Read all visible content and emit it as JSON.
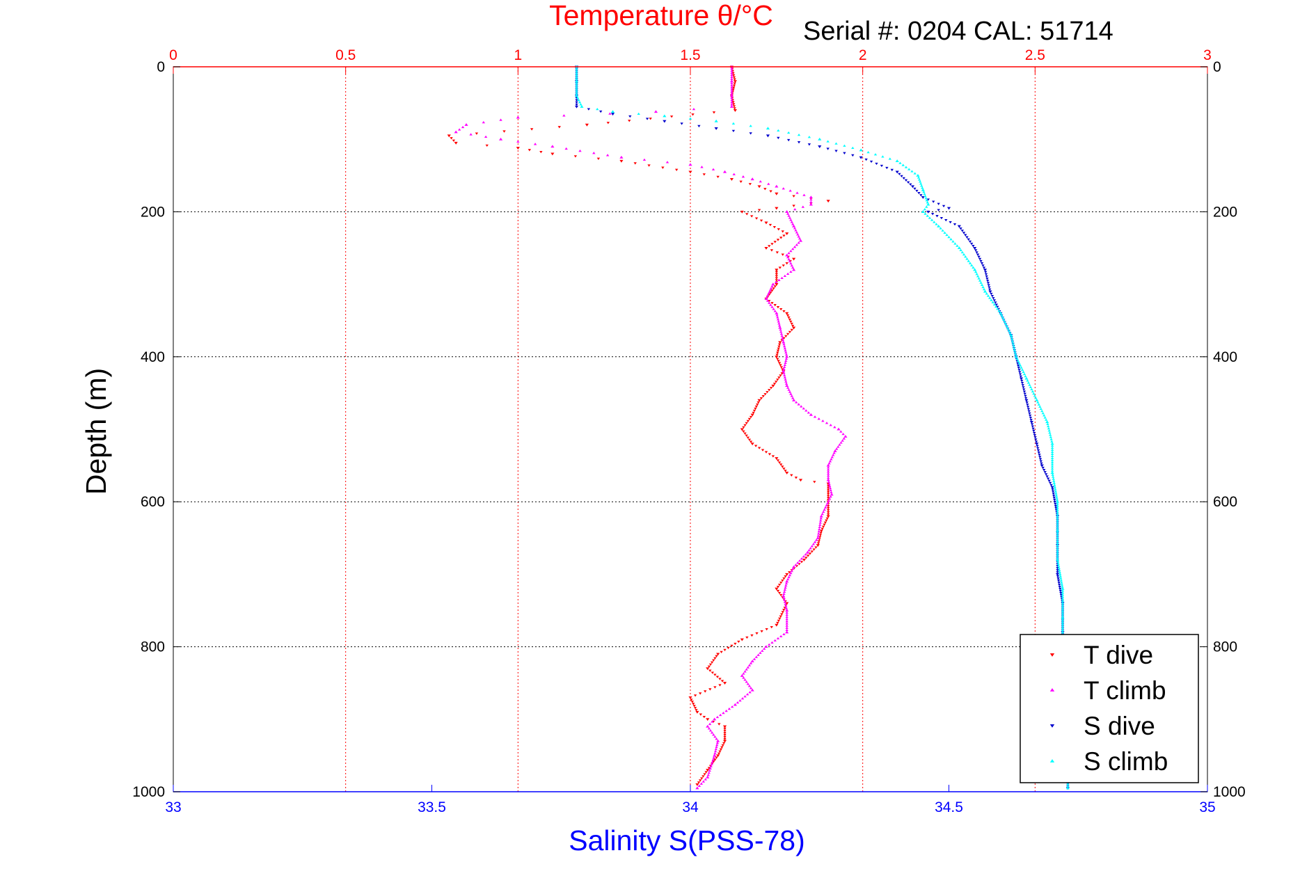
{
  "colors": {
    "temperature_axis": "#ff0000",
    "salinity_axis": "#0000ff",
    "t_dive": "#ff0000",
    "t_climb": "#ff00ff",
    "s_dive": "#0000cc",
    "s_climb": "#00ffff",
    "grid_temperature": "#ff0000",
    "grid_depth": "#000000"
  },
  "chart_data": {
    "type": "scatter",
    "title": "Temperature θ/°C",
    "annotation": "Serial #: 0204  CAL: 51714",
    "ylabel": "Depth (m)",
    "xlabel": "Salinity S(PSS-78)",
    "x_top_label": "Temperature θ/°C",
    "x_top_lim": [
      0,
      3
    ],
    "x_top_ticks": [
      "0",
      "0.5",
      "1",
      "1.5",
      "2",
      "2.5",
      "3"
    ],
    "x_bottom_lim": [
      33,
      35
    ],
    "x_bottom_ticks": [
      "33",
      "33.5",
      "34",
      "34.5",
      "35"
    ],
    "ylim": [
      1000,
      0
    ],
    "y_ticks": [
      "0",
      "200",
      "400",
      "600",
      "800",
      "1000"
    ],
    "grid": true,
    "legend_position": "bottom-right",
    "series": [
      {
        "name": "T dive",
        "axis": "temperature",
        "marker": "triangle-down",
        "points": [
          [
            1.62,
            0
          ],
          [
            1.63,
            20
          ],
          [
            1.62,
            40
          ],
          [
            1.63,
            60
          ],
          [
            1.2,
            80
          ],
          [
            0.8,
            95
          ],
          [
            0.82,
            105
          ],
          [
            1.0,
            112
          ],
          [
            1.1,
            120
          ],
          [
            1.3,
            130
          ],
          [
            1.5,
            145
          ],
          [
            1.62,
            155
          ],
          [
            1.7,
            165
          ],
          [
            1.75,
            175
          ],
          [
            1.9,
            185
          ],
          [
            1.75,
            195
          ],
          [
            1.65,
            200
          ],
          [
            1.72,
            215
          ],
          [
            1.78,
            230
          ],
          [
            1.72,
            250
          ],
          [
            1.8,
            265
          ],
          [
            1.75,
            280
          ],
          [
            1.75,
            300
          ],
          [
            1.72,
            320
          ],
          [
            1.78,
            340
          ],
          [
            1.8,
            360
          ],
          [
            1.76,
            380
          ],
          [
            1.75,
            400
          ],
          [
            1.77,
            420
          ],
          [
            1.74,
            440
          ],
          [
            1.7,
            460
          ],
          [
            1.68,
            480
          ],
          [
            1.65,
            500
          ],
          [
            1.68,
            520
          ],
          [
            1.75,
            540
          ],
          [
            1.78,
            560
          ],
          [
            1.82,
            570
          ],
          [
            1.9,
            575
          ],
          [
            1.9,
            600
          ],
          [
            1.9,
            620
          ],
          [
            1.88,
            640
          ],
          [
            1.87,
            660
          ],
          [
            1.83,
            680
          ],
          [
            1.78,
            700
          ],
          [
            1.75,
            720
          ],
          [
            1.78,
            740
          ],
          [
            1.75,
            770
          ],
          [
            1.65,
            790
          ],
          [
            1.58,
            810
          ],
          [
            1.55,
            830
          ],
          [
            1.6,
            850
          ],
          [
            1.5,
            870
          ],
          [
            1.52,
            890
          ],
          [
            1.55,
            900
          ],
          [
            1.6,
            910
          ],
          [
            1.6,
            930
          ],
          [
            1.58,
            950
          ],
          [
            1.55,
            970
          ],
          [
            1.52,
            990
          ]
        ]
      },
      {
        "name": "T climb",
        "axis": "temperature",
        "marker": "triangle-up",
        "points": [
          [
            1.62,
            0
          ],
          [
            1.62,
            20
          ],
          [
            1.62,
            40
          ],
          [
            1.62,
            55
          ],
          [
            1.4,
            62
          ],
          [
            1.0,
            70
          ],
          [
            0.85,
            80
          ],
          [
            0.82,
            90
          ],
          [
            0.95,
            100
          ],
          [
            1.1,
            110
          ],
          [
            1.3,
            125
          ],
          [
            1.5,
            135
          ],
          [
            1.6,
            145
          ],
          [
            1.68,
            155
          ],
          [
            1.75,
            165
          ],
          [
            1.85,
            180
          ],
          [
            1.85,
            190
          ],
          [
            1.78,
            200
          ],
          [
            1.8,
            220
          ],
          [
            1.82,
            240
          ],
          [
            1.78,
            260
          ],
          [
            1.8,
            280
          ],
          [
            1.74,
            300
          ],
          [
            1.72,
            320
          ],
          [
            1.75,
            340
          ],
          [
            1.76,
            360
          ],
          [
            1.77,
            380
          ],
          [
            1.78,
            400
          ],
          [
            1.77,
            420
          ],
          [
            1.78,
            440
          ],
          [
            1.8,
            460
          ],
          [
            1.85,
            480
          ],
          [
            1.93,
            500
          ],
          [
            1.95,
            510
          ],
          [
            1.92,
            530
          ],
          [
            1.9,
            550
          ],
          [
            1.9,
            570
          ],
          [
            1.91,
            590
          ],
          [
            1.88,
            620
          ],
          [
            1.87,
            650
          ],
          [
            1.84,
            670
          ],
          [
            1.8,
            690
          ],
          [
            1.78,
            710
          ],
          [
            1.77,
            730
          ],
          [
            1.78,
            750
          ],
          [
            1.78,
            780
          ],
          [
            1.72,
            800
          ],
          [
            1.68,
            820
          ],
          [
            1.65,
            840
          ],
          [
            1.68,
            860
          ],
          [
            1.63,
            880
          ],
          [
            1.57,
            900
          ],
          [
            1.55,
            910
          ],
          [
            1.58,
            930
          ],
          [
            1.57,
            950
          ],
          [
            1.55,
            980
          ],
          [
            1.52,
            995
          ]
        ]
      },
      {
        "name": "S dive",
        "axis": "salinity",
        "marker": "triangle-down",
        "points": [
          [
            33.78,
            0
          ],
          [
            33.78,
            20
          ],
          [
            33.78,
            40
          ],
          [
            33.78,
            55
          ],
          [
            33.85,
            65
          ],
          [
            33.95,
            75
          ],
          [
            34.05,
            85
          ],
          [
            34.15,
            95
          ],
          [
            34.25,
            110
          ],
          [
            34.33,
            125
          ],
          [
            34.4,
            145
          ],
          [
            34.43,
            165
          ],
          [
            34.45,
            180
          ],
          [
            34.5,
            195
          ],
          [
            34.46,
            200
          ],
          [
            34.52,
            220
          ],
          [
            34.55,
            250
          ],
          [
            34.57,
            280
          ],
          [
            34.58,
            310
          ],
          [
            34.6,
            340
          ],
          [
            34.62,
            370
          ],
          [
            34.63,
            400
          ],
          [
            34.64,
            430
          ],
          [
            34.65,
            460
          ],
          [
            34.66,
            490
          ],
          [
            34.67,
            520
          ],
          [
            34.68,
            550
          ],
          [
            34.7,
            580
          ],
          [
            34.71,
            620
          ],
          [
            34.71,
            660
          ],
          [
            34.71,
            700
          ],
          [
            34.72,
            740
          ],
          [
            34.72,
            780
          ],
          [
            34.72,
            820
          ],
          [
            34.72,
            860
          ],
          [
            34.72,
            900
          ],
          [
            34.73,
            940
          ],
          [
            34.73,
            980
          ],
          [
            34.73,
            995
          ]
        ]
      },
      {
        "name": "S climb",
        "axis": "salinity",
        "marker": "triangle-up",
        "points": [
          [
            33.78,
            0
          ],
          [
            33.78,
            20
          ],
          [
            33.78,
            40
          ],
          [
            33.79,
            55
          ],
          [
            33.85,
            62
          ],
          [
            33.95,
            68
          ],
          [
            34.05,
            75
          ],
          [
            34.15,
            85
          ],
          [
            34.25,
            100
          ],
          [
            34.33,
            115
          ],
          [
            34.4,
            130
          ],
          [
            34.44,
            150
          ],
          [
            34.45,
            170
          ],
          [
            34.46,
            190
          ],
          [
            34.45,
            200
          ],
          [
            34.48,
            220
          ],
          [
            34.52,
            250
          ],
          [
            34.55,
            280
          ],
          [
            34.57,
            310
          ],
          [
            34.6,
            340
          ],
          [
            34.62,
            370
          ],
          [
            34.63,
            400
          ],
          [
            34.65,
            430
          ],
          [
            34.67,
            460
          ],
          [
            34.69,
            490
          ],
          [
            34.7,
            520
          ],
          [
            34.7,
            560
          ],
          [
            34.71,
            600
          ],
          [
            34.71,
            640
          ],
          [
            34.71,
            680
          ],
          [
            34.72,
            720
          ],
          [
            34.72,
            760
          ],
          [
            34.72,
            800
          ],
          [
            34.72,
            840
          ],
          [
            34.72,
            880
          ],
          [
            34.72,
            920
          ],
          [
            34.73,
            960
          ],
          [
            34.73,
            995
          ]
        ]
      }
    ]
  }
}
